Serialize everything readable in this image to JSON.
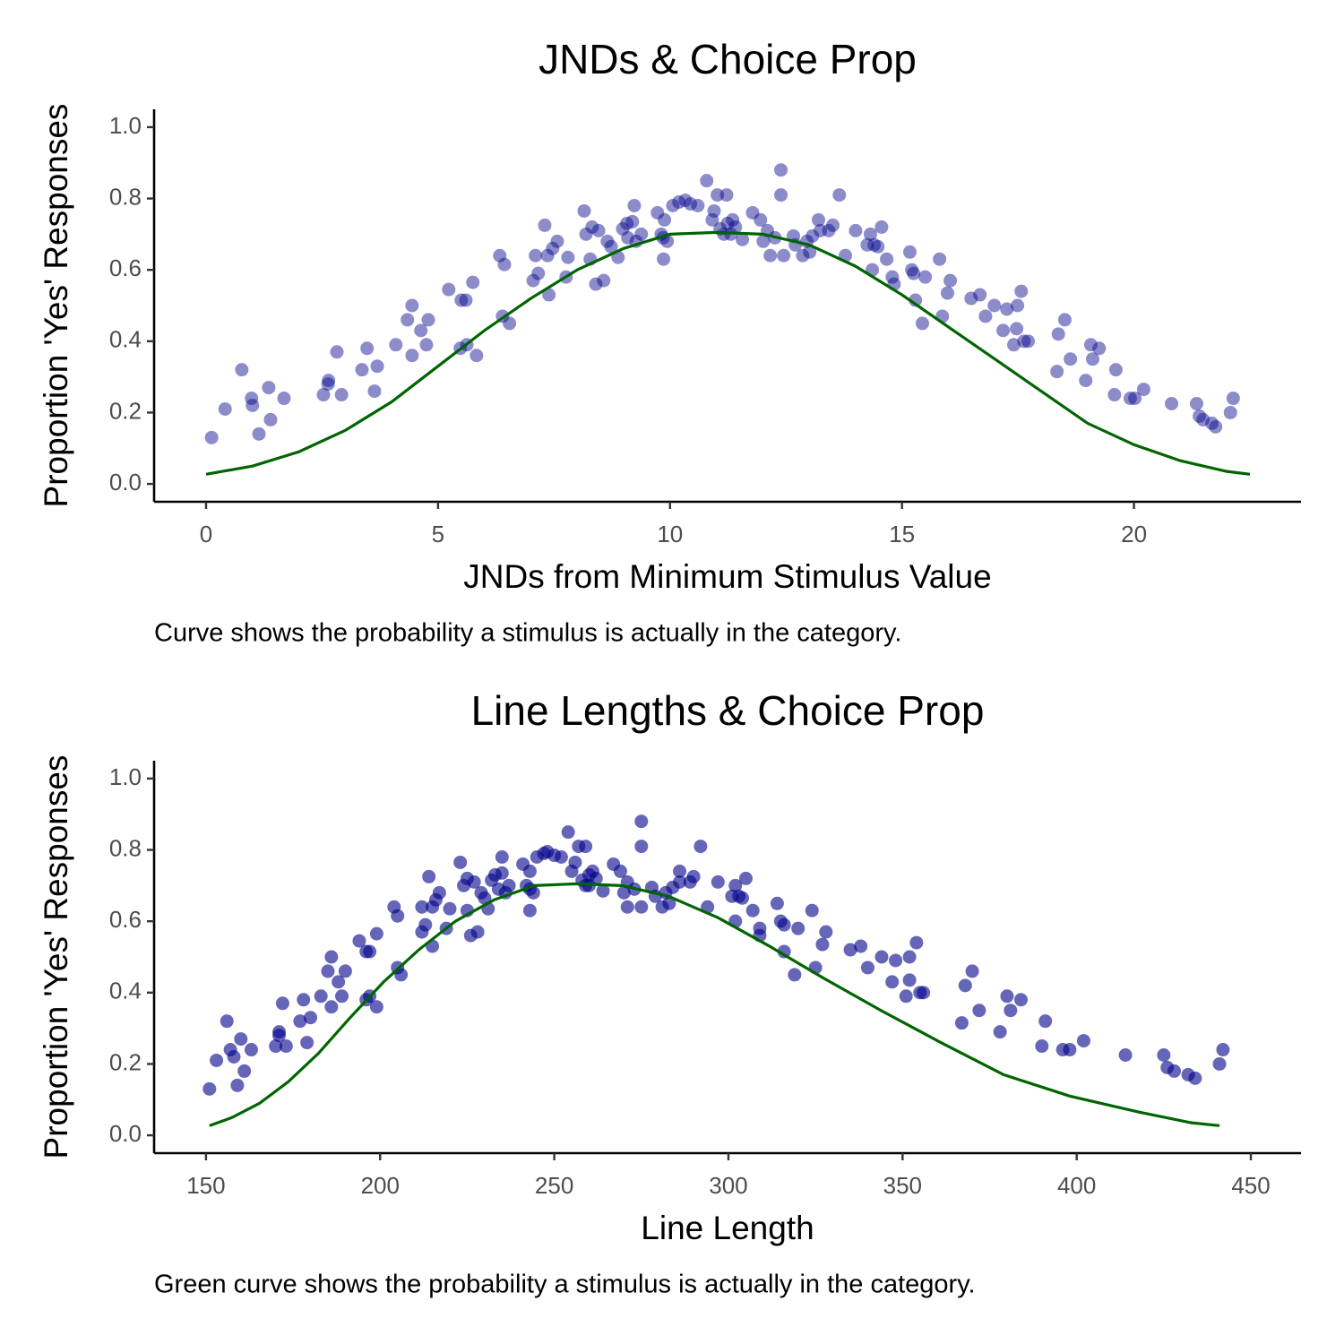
{
  "chart_data": [
    {
      "type": "scatter",
      "title": "JNDs & Choice Prop",
      "x_label": "JNDs from Minimum Stimulus Value",
      "y_label": "Proportion 'Yes' Responses",
      "caption": "Curve shows the probability a stimulus is actually in the category.",
      "xlim": [
        -1.12,
        23.6
      ],
      "ylim": [
        -0.05,
        1.05
      ],
      "xticks": [
        0,
        5,
        10,
        15,
        20
      ],
      "yticks": [
        {
          "value": 0,
          "label": "0.0"
        },
        0.2,
        0.4,
        0.6,
        0.8,
        {
          "value": 1,
          "label": "1.0"
        }
      ],
      "series": [
        {
          "type": "scatter",
          "color": "#00008b",
          "alpha": 0.45,
          "x": [
            0.12,
            0.41,
            0.77,
            0.98,
            1.0,
            1.14,
            1.35,
            1.39,
            1.68,
            2.53,
            2.63,
            2.64,
            2.82,
            2.92,
            3.36,
            3.47,
            3.63,
            3.69,
            4.09,
            4.34,
            4.44,
            4.44,
            4.63,
            4.75,
            4.79,
            5.23,
            5.48,
            5.5,
            5.6,
            5.62,
            5.75,
            5.83,
            6.33,
            6.39,
            6.43,
            6.54,
            7.05,
            7.1,
            7.16,
            7.3,
            7.36,
            7.39,
            7.47,
            7.57,
            7.76,
            7.8,
            8.15,
            8.19,
            8.28,
            8.32,
            8.4,
            8.46,
            8.57,
            8.65,
            8.73,
            8.88,
            8.98,
            9.07,
            9.09,
            9.19,
            9.23,
            9.27,
            9.38,
            9.73,
            9.81,
            9.85,
            9.86,
            9.88,
            9.94,
            10.06,
            10.19,
            10.33,
            10.44,
            10.6,
            10.79,
            10.91,
            10.95,
            11.02,
            11.08,
            11.16,
            11.22,
            11.24,
            11.31,
            11.35,
            11.41,
            11.56,
            11.78,
            11.95,
            12.01,
            12.1,
            12.16,
            12.26,
            12.39,
            12.39,
            12.45,
            12.66,
            12.7,
            12.86,
            12.95,
            13.01,
            13.07,
            13.2,
            13.24,
            13.42,
            13.51,
            13.65,
            13.78,
            14.0,
            14.25,
            14.32,
            14.36,
            14.4,
            14.48,
            14.56,
            14.67,
            14.79,
            14.83,
            15.17,
            15.21,
            15.25,
            15.29,
            15.44,
            15.5,
            15.81,
            15.87,
            15.98,
            16.04,
            16.49,
            16.68,
            16.8,
            16.99,
            17.18,
            17.26,
            17.41,
            17.47,
            17.49,
            17.57,
            17.63,
            17.72,
            18.34,
            18.37,
            18.51,
            18.63,
            18.96,
            19.07,
            19.11,
            19.25,
            19.58,
            19.61,
            19.92,
            20.02,
            20.21,
            20.81,
            21.35,
            21.41,
            21.49,
            21.68,
            21.76,
            22.08,
            22.14
          ],
          "values": [
            0.13,
            0.21,
            0.32,
            0.24,
            0.22,
            0.14,
            0.27,
            0.18,
            0.24,
            0.25,
            0.28,
            0.29,
            0.37,
            0.25,
            0.32,
            0.38,
            0.26,
            0.33,
            0.39,
            0.46,
            0.5,
            0.36,
            0.43,
            0.39,
            0.46,
            0.545,
            0.38,
            0.515,
            0.515,
            0.39,
            0.565,
            0.36,
            0.64,
            0.47,
            0.615,
            0.45,
            0.57,
            0.64,
            0.59,
            0.725,
            0.64,
            0.53,
            0.66,
            0.68,
            0.58,
            0.635,
            0.765,
            0.7,
            0.63,
            0.72,
            0.56,
            0.71,
            0.57,
            0.68,
            0.665,
            0.635,
            0.715,
            0.73,
            0.69,
            0.735,
            0.78,
            0.68,
            0.7,
            0.76,
            0.7,
            0.69,
            0.63,
            0.74,
            0.68,
            0.78,
            0.79,
            0.795,
            0.785,
            0.78,
            0.85,
            0.74,
            0.765,
            0.81,
            0.715,
            0.7,
            0.81,
            0.73,
            0.7,
            0.74,
            0.72,
            0.685,
            0.76,
            0.74,
            0.68,
            0.71,
            0.64,
            0.69,
            0.88,
            0.81,
            0.64,
            0.695,
            0.67,
            0.64,
            0.68,
            0.65,
            0.695,
            0.74,
            0.71,
            0.71,
            0.725,
            0.81,
            0.64,
            0.71,
            0.67,
            0.7,
            0.6,
            0.67,
            0.665,
            0.72,
            0.63,
            0.58,
            0.56,
            0.65,
            0.6,
            0.59,
            0.515,
            0.45,
            0.58,
            0.63,
            0.47,
            0.535,
            0.57,
            0.52,
            0.53,
            0.47,
            0.5,
            0.43,
            0.49,
            0.39,
            0.435,
            0.5,
            0.54,
            0.4,
            0.4,
            0.315,
            0.42,
            0.46,
            0.35,
            0.29,
            0.39,
            0.35,
            0.38,
            0.25,
            0.32,
            0.24,
            0.24,
            0.265,
            0.225,
            0.225,
            0.19,
            0.18,
            0.17,
            0.16,
            0.2,
            0.24
          ]
        },
        {
          "type": "line",
          "color": "#006400",
          "x": [
            0,
            1,
            2,
            3,
            4,
            5,
            6,
            7,
            8,
            9,
            10,
            11,
            12,
            13,
            14,
            15,
            16,
            17,
            18,
            19,
            20,
            21,
            22,
            22.5
          ],
          "values": [
            0.027,
            0.05,
            0.09,
            0.15,
            0.23,
            0.33,
            0.43,
            0.52,
            0.6,
            0.66,
            0.7,
            0.705,
            0.7,
            0.67,
            0.61,
            0.53,
            0.44,
            0.35,
            0.26,
            0.17,
            0.11,
            0.065,
            0.035,
            0.027
          ]
        }
      ]
    },
    {
      "type": "scatter",
      "title": "Line Lengths & Choice Prop",
      "x_label": "Line Length",
      "y_label": "Proportion 'Yes' Responses",
      "caption": "Green curve shows the probability a stimulus is actually in the category.",
      "xlim": [
        135.1,
        464.4
      ],
      "ylim": [
        -0.05,
        1.05
      ],
      "xticks": [
        150,
        200,
        250,
        300,
        350,
        400,
        450
      ],
      "yticks": [
        {
          "value": 0,
          "label": "0.0"
        },
        0.2,
        0.4,
        0.6,
        0.8,
        {
          "value": 1,
          "label": "1.0"
        }
      ],
      "series": [
        {
          "type": "scatter",
          "color": "#00008b",
          "alpha": 0.6,
          "x": [
            151,
            153,
            156,
            157,
            158,
            159,
            160,
            161,
            163,
            170,
            171,
            171,
            172,
            173,
            177,
            178,
            179,
            180,
            183,
            185,
            186,
            186,
            188,
            189,
            190,
            194,
            196,
            196,
            197,
            197,
            199,
            199,
            204,
            205,
            205,
            206,
            212,
            212,
            213,
            214,
            215,
            215,
            216,
            217,
            219,
            220,
            223,
            224,
            225,
            225,
            226,
            227,
            228,
            229,
            230,
            231,
            232,
            233,
            234,
            235,
            235,
            236,
            237,
            241,
            242,
            243,
            243,
            243,
            244,
            245,
            247,
            248,
            250,
            252,
            254,
            255,
            256,
            257,
            258,
            259,
            259,
            260,
            260,
            261,
            262,
            264,
            267,
            269,
            270,
            271,
            271,
            273,
            275,
            275,
            275,
            278,
            279,
            281,
            282,
            283,
            284,
            286,
            286,
            289,
            290,
            292,
            294,
            297,
            301,
            302,
            302,
            303,
            304,
            305,
            307,
            309,
            309,
            314,
            315,
            316,
            316,
            319,
            320,
            324,
            325,
            327,
            328,
            335,
            338,
            340,
            344,
            347,
            348,
            351,
            352,
            352,
            354,
            355,
            356,
            367,
            368,
            370,
            372,
            378,
            380,
            381,
            384,
            390,
            391,
            396,
            398,
            402,
            414,
            425,
            426,
            428,
            432,
            434,
            441,
            442
          ],
          "values": [
            0.13,
            0.21,
            0.32,
            0.24,
            0.22,
            0.14,
            0.27,
            0.18,
            0.24,
            0.25,
            0.28,
            0.29,
            0.37,
            0.25,
            0.32,
            0.38,
            0.26,
            0.33,
            0.39,
            0.46,
            0.5,
            0.36,
            0.43,
            0.39,
            0.46,
            0.545,
            0.38,
            0.515,
            0.515,
            0.39,
            0.565,
            0.36,
            0.64,
            0.47,
            0.615,
            0.45,
            0.57,
            0.64,
            0.59,
            0.725,
            0.64,
            0.53,
            0.66,
            0.68,
            0.58,
            0.635,
            0.765,
            0.7,
            0.63,
            0.72,
            0.56,
            0.71,
            0.57,
            0.68,
            0.665,
            0.635,
            0.715,
            0.73,
            0.69,
            0.735,
            0.78,
            0.68,
            0.7,
            0.76,
            0.7,
            0.69,
            0.63,
            0.74,
            0.68,
            0.78,
            0.79,
            0.795,
            0.785,
            0.78,
            0.85,
            0.74,
            0.765,
            0.81,
            0.715,
            0.7,
            0.81,
            0.73,
            0.7,
            0.74,
            0.72,
            0.685,
            0.76,
            0.74,
            0.68,
            0.71,
            0.64,
            0.69,
            0.88,
            0.81,
            0.64,
            0.695,
            0.67,
            0.64,
            0.68,
            0.65,
            0.695,
            0.74,
            0.71,
            0.71,
            0.725,
            0.81,
            0.64,
            0.71,
            0.67,
            0.7,
            0.6,
            0.67,
            0.665,
            0.72,
            0.63,
            0.58,
            0.56,
            0.65,
            0.6,
            0.59,
            0.515,
            0.45,
            0.58,
            0.63,
            0.47,
            0.535,
            0.57,
            0.52,
            0.53,
            0.47,
            0.5,
            0.43,
            0.49,
            0.39,
            0.435,
            0.5,
            0.54,
            0.4,
            0.4,
            0.315,
            0.42,
            0.46,
            0.35,
            0.29,
            0.39,
            0.35,
            0.38,
            0.25,
            0.32,
            0.24,
            0.24,
            0.265,
            0.225,
            0.225,
            0.19,
            0.18,
            0.17,
            0.16,
            0.2,
            0.24
          ]
        },
        {
          "type": "line",
          "color": "#006400",
          "x": [
            151,
            157.5,
            165.4,
            173.6,
            182.3,
            191.4,
            201,
            211.1,
            221.6,
            232.7,
            244.3,
            256.5,
            269.4,
            282.8,
            297,
            311.8,
            327.4,
            343.8,
            361,
            379,
            398,
            417.9,
            433,
            441
          ],
          "values": [
            0.027,
            0.05,
            0.09,
            0.15,
            0.23,
            0.33,
            0.43,
            0.52,
            0.6,
            0.66,
            0.7,
            0.705,
            0.7,
            0.67,
            0.61,
            0.53,
            0.44,
            0.35,
            0.26,
            0.17,
            0.11,
            0.065,
            0.035,
            0.027
          ]
        }
      ]
    }
  ]
}
